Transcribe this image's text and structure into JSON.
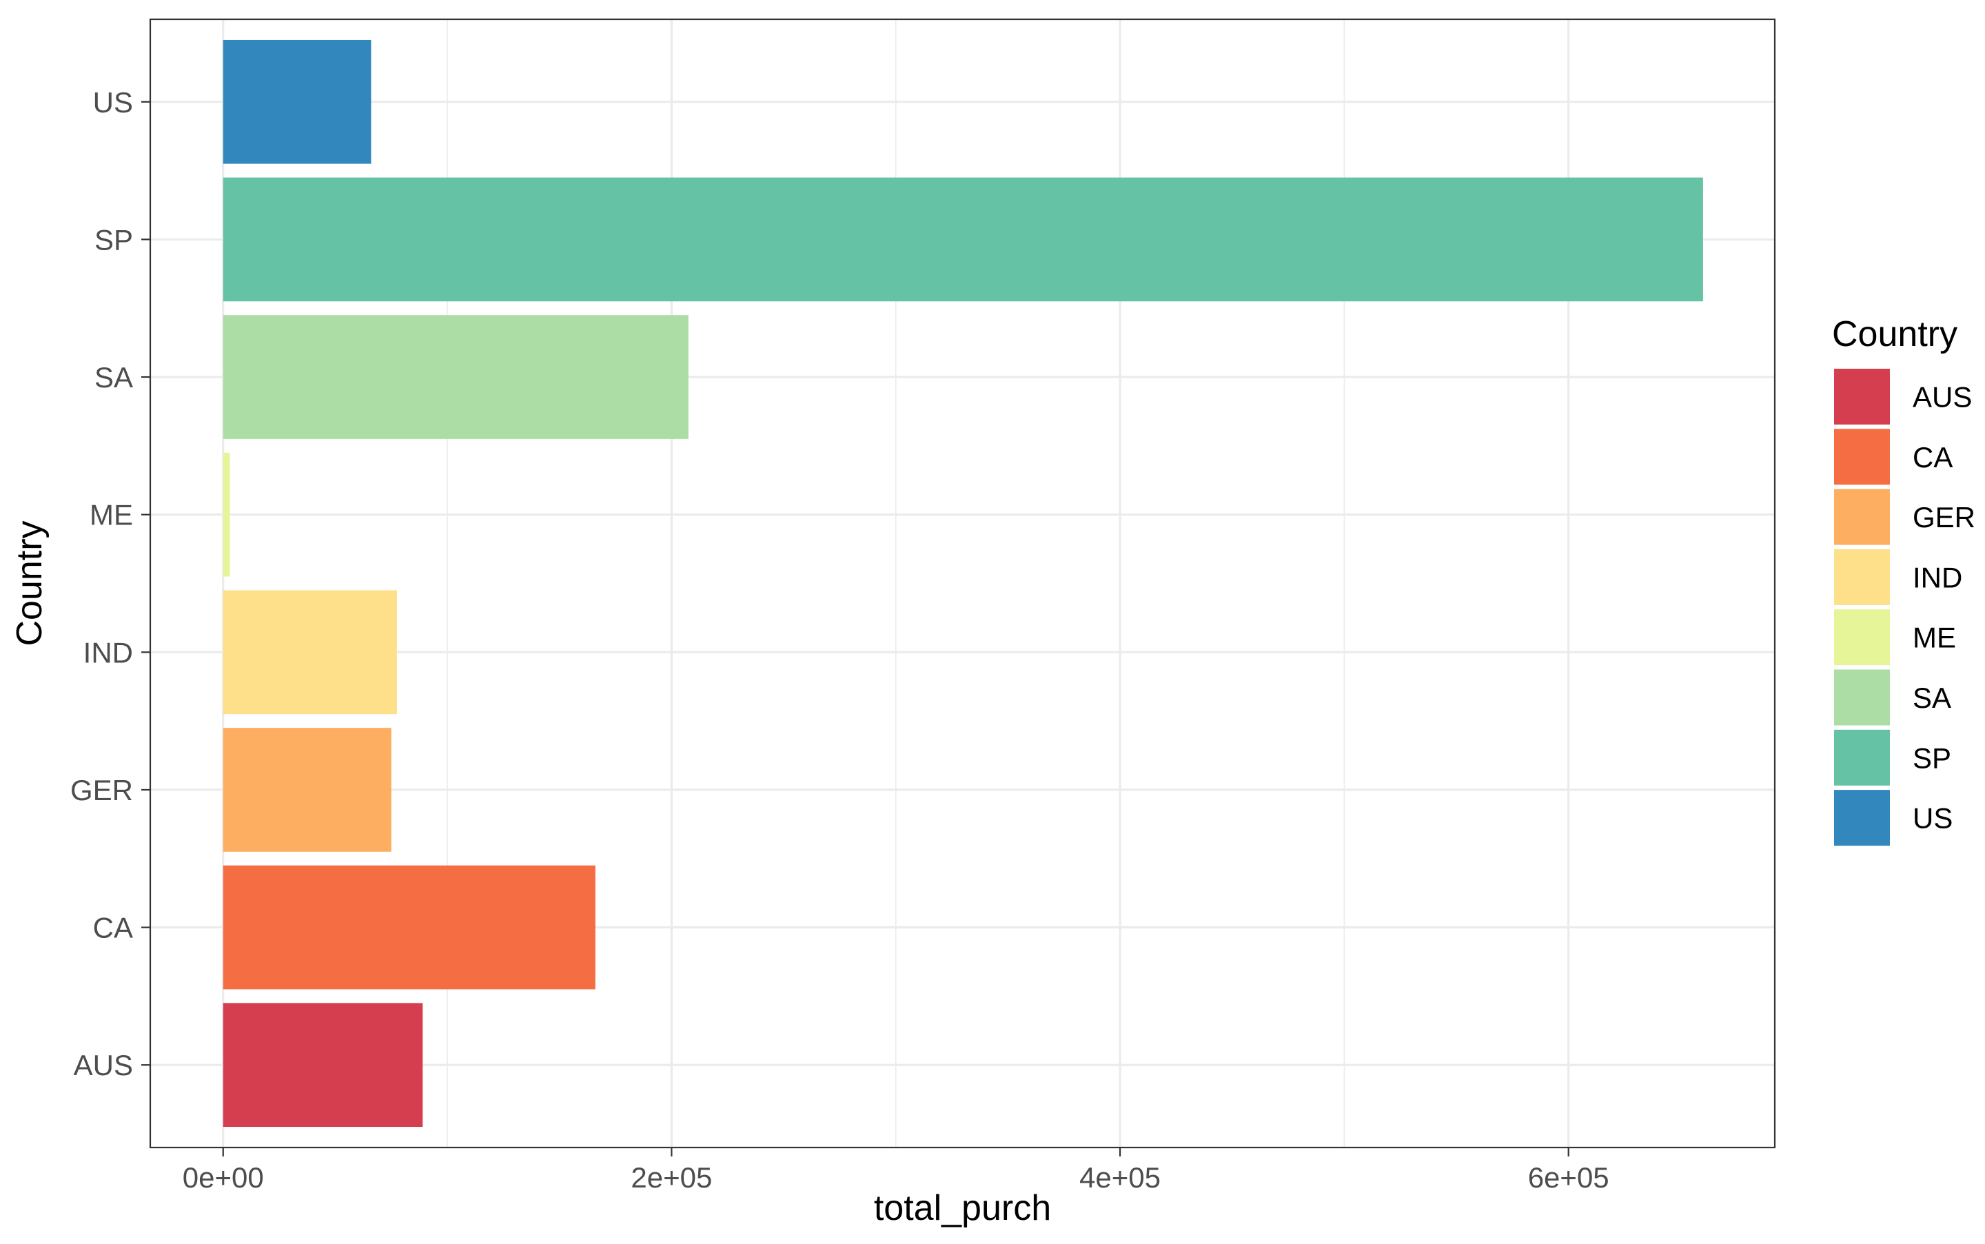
{
  "chart_data": {
    "type": "bar",
    "orientation": "horizontal",
    "xlabel": "total_purch",
    "ylabel": "Country",
    "categories": [
      "AUS",
      "CA",
      "GER",
      "IND",
      "ME",
      "SA",
      "SP",
      "US"
    ],
    "values": [
      89000,
      166000,
      75000,
      77500,
      3000,
      207500,
      660000,
      66000
    ],
    "colors": [
      "#D53E4F",
      "#F46D43",
      "#FDAE61",
      "#FEE08B",
      "#E6F598",
      "#ABDDA4",
      "#66C2A5",
      "#3288BD"
    ],
    "xlim": [
      -32500,
      692000
    ],
    "x_ticks": [
      0,
      200000,
      400000,
      600000
    ],
    "x_tick_labels": [
      "0e+00",
      "2e+05",
      "4e+05",
      "6e+05"
    ],
    "x_minor_ticks": [
      100000,
      300000,
      500000
    ],
    "grid": true,
    "legend": {
      "title": "Country",
      "position": "right",
      "entries": [
        "AUS",
        "CA",
        "GER",
        "IND",
        "ME",
        "SA",
        "SP",
        "US"
      ]
    }
  }
}
